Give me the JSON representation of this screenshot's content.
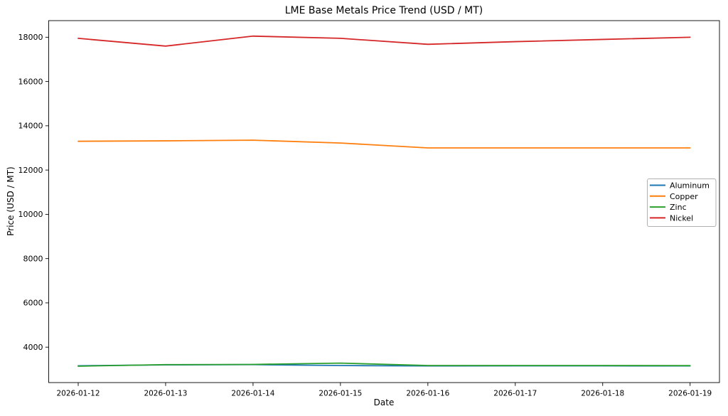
{
  "figure": {
    "title": "LME Base Metals Price Trend (USD / MT)",
    "xlabel": "Date",
    "ylabel": "Price (USD / MT)"
  },
  "chart_data": {
    "type": "line",
    "title": "LME Base Metals Price Trend (USD / MT)",
    "xlabel": "Date",
    "ylabel": "Price (USD / MT)",
    "x": [
      "2026-01-12",
      "2026-01-13",
      "2026-01-14",
      "2026-01-15",
      "2026-01-16",
      "2026-01-17",
      "2026-01-18",
      "2026-01-19"
    ],
    "series": [
      {
        "name": "Aluminum",
        "color": "#1f77b4",
        "values": [
          3160,
          3200,
          3210,
          3170,
          3150,
          3155,
          3155,
          3150
        ]
      },
      {
        "name": "Copper",
        "color": "#ff7f0e",
        "values": [
          13300,
          13320,
          13350,
          13220,
          13000,
          13000,
          13000,
          13000
        ]
      },
      {
        "name": "Zinc",
        "color": "#2ca02c",
        "values": [
          3140,
          3210,
          3220,
          3280,
          3170,
          3170,
          3170,
          3165
        ]
      },
      {
        "name": "Nickel",
        "color": "#d62728",
        "values": [
          17950,
          17600,
          18050,
          17950,
          17680,
          17800,
          17900,
          18000
        ]
      }
    ],
    "y_ticks": [
      4000,
      6000,
      8000,
      10000,
      12000,
      14000,
      16000,
      18000
    ],
    "ylim": [
      2400,
      18750
    ],
    "grid": false,
    "legend": {
      "position": "center-right",
      "entries": [
        "Aluminum",
        "Copper",
        "Zinc",
        "Nickel"
      ]
    },
    "axis_color": "#000000",
    "background_color": "#ffffff"
  }
}
